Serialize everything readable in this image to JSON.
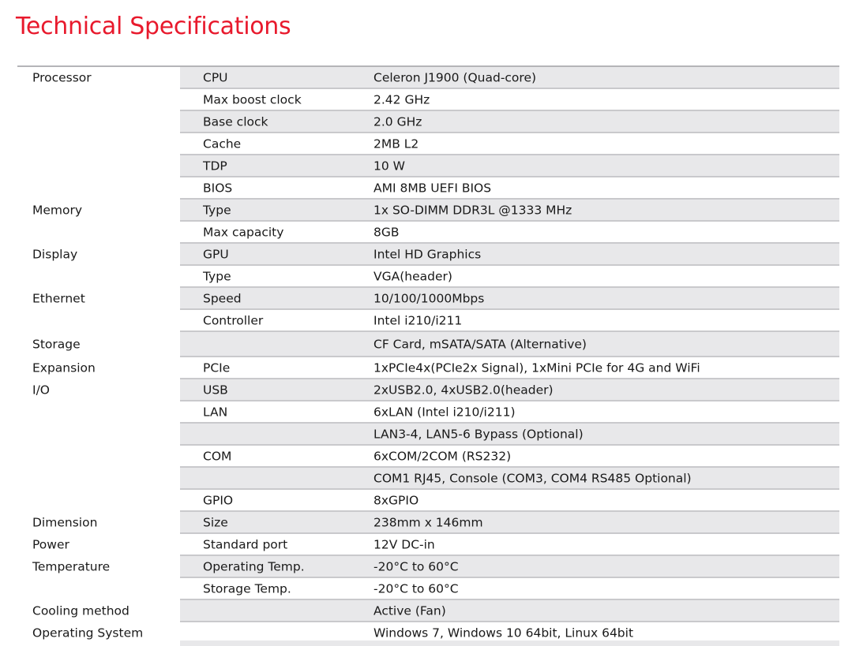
{
  "title": "Technical Specifications",
  "rows": [
    {
      "category": "Processor",
      "key": "CPU",
      "value": "Celeron J1900 (Quad-core)"
    },
    {
      "category": "",
      "key": "Max boost clock",
      "value": "2.42 GHz"
    },
    {
      "category": "",
      "key": "Base clock",
      "value": "2.0 GHz"
    },
    {
      "category": "",
      "key": "Cache",
      "value": "2MB L2"
    },
    {
      "category": "",
      "key": "TDP",
      "value": "10 W"
    },
    {
      "category": "",
      "key": "BIOS",
      "value": "AMI 8MB UEFI BIOS"
    },
    {
      "category": "Memory",
      "key": "Type",
      "value": "1x SO-DIMM DDR3L @1333 MHz"
    },
    {
      "category": "",
      "key": "Max capacity",
      "value": "8GB"
    },
    {
      "category": "Display",
      "key": "GPU",
      "value": "Intel HD Graphics"
    },
    {
      "category": "",
      "key": "Type",
      "value": "VGA(header)"
    },
    {
      "category": "Ethernet",
      "key": "Speed",
      "value": "10/100/1000Mbps"
    },
    {
      "category": "",
      "key": "Controller",
      "value": "Intel i210/i211"
    },
    {
      "category": "Storage",
      "key": "",
      "value": "CF Card, mSATA/SATA (Alternative)"
    },
    {
      "category": "Expansion",
      "key": "PCIe",
      "value": "1xPCIe4x(PCIe2x Signal), 1xMini PCIe for 4G and WiFi"
    },
    {
      "category": "I/O",
      "key": "USB",
      "value": "2xUSB2.0, 4xUSB2.0(header)"
    },
    {
      "category": "",
      "key": "LAN",
      "value": "6xLAN (Intel i210/i211)"
    },
    {
      "category": "",
      "key": "",
      "value": "LAN3-4, LAN5-6 Bypass  (Optional)"
    },
    {
      "category": "",
      "key": "COM",
      "value": "6xCOM/2COM (RS232)"
    },
    {
      "category": "",
      "key": "",
      "value": "COM1 RJ45, Console (COM3, COM4 RS485 Optional)"
    },
    {
      "category": "",
      "key": "GPIO",
      "value": "8xGPIO"
    },
    {
      "category": "Dimension",
      "key": "Size",
      "value": "238mm x 146mm"
    },
    {
      "category": "Power",
      "key": "Standard port",
      "value": "12V DC-in"
    },
    {
      "category": "Temperature",
      "key": "Operating Temp.",
      "value": "-20°C to 60°C"
    },
    {
      "category": "",
      "key": "Storage Temp.",
      "value": "-20°C to 60°C"
    },
    {
      "category": "Cooling method",
      "key": "",
      "value": "Active (Fan)"
    },
    {
      "category": "Operating System",
      "key": "",
      "value": "Windows 7, Windows 10 64bit, Linux 64bit"
    }
  ],
  "colors": {
    "title": "#e8192c",
    "shaded_row": "#e8e8ea",
    "rule": "#c9c9cc"
  }
}
